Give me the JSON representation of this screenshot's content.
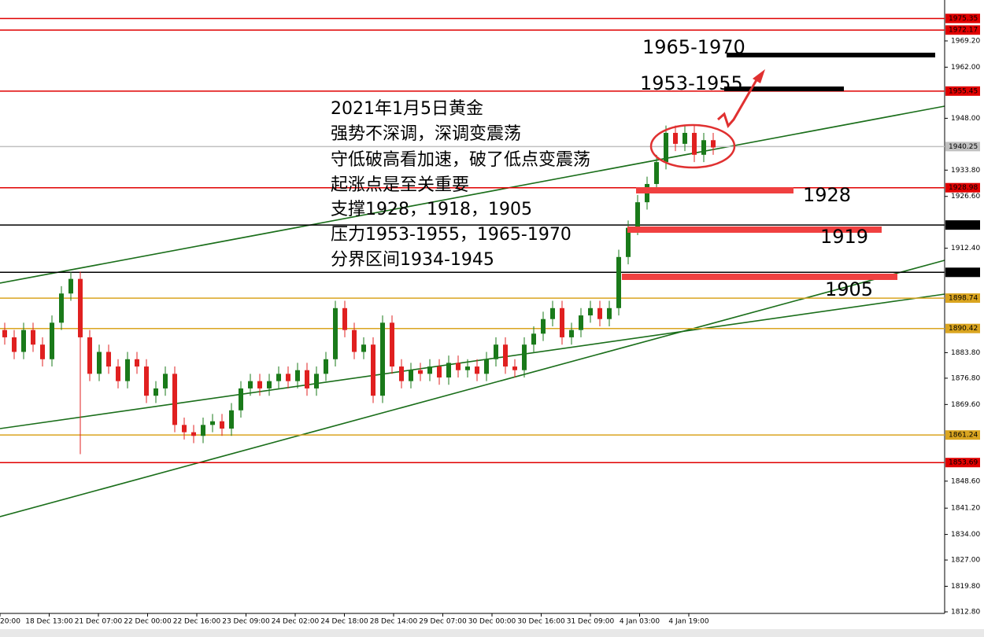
{
  "chart_data": {
    "type": "candlestick",
    "annotations": [
      "2021年1月5日黄金",
      "强势不深调，深调变震荡",
      "守低破高看加速，破了低点变震荡",
      "起涨点是至关重要",
      "支撑1928，1918，1905",
      "压力1953-1955，1965-1970",
      "分界区间1934-1945",
      "1965-1970",
      "1953-1955",
      "1928",
      "1919",
      "1905"
    ],
    "x_labels": [
      "20:00",
      "18 Dec 13:00",
      "21 Dec 07:00",
      "22 Dec 00:00",
      "22 Dec 16:00",
      "23 Dec 09:00",
      "24 Dec 02:00",
      "24 Dec 18:00",
      "28 Dec 14:00",
      "29 Dec 07:00",
      "30 Dec 00:00",
      "30 Dec 16:00",
      "31 Dec 09:00",
      "4 Jan 03:00",
      "4 Jan 19:00"
    ],
    "up_color": "#1a7a1a",
    "down_color": "#e02020",
    "open": [
      1890,
      1888,
      1884,
      1890,
      1886,
      1882,
      1892,
      1900,
      1904,
      1888,
      1878,
      1884,
      1880,
      1876,
      1882,
      1880,
      1872,
      1874,
      1878,
      1864,
      1862,
      1861,
      1864,
      1865,
      1863,
      1868,
      1874,
      1876,
      1874,
      1876,
      1878,
      1876,
      1879,
      1874,
      1878,
      1882,
      1896,
      1890,
      1884,
      1886,
      1872,
      1892,
      1880,
      1876,
      1879,
      1878,
      1880,
      1877,
      1881,
      1879,
      1880,
      1878,
      1882,
      1886,
      1880,
      1879,
      1886,
      1889,
      1893,
      1896,
      1888,
      1890,
      1894,
      1896,
      1893,
      1896,
      1910,
      1918,
      1925,
      1930,
      1936,
      1944,
      1941,
      1944,
      1938,
      1942
    ],
    "high": [
      1892,
      1890,
      1892,
      1892,
      1888,
      1894,
      1902,
      1906,
      1906,
      1890,
      1886,
      1886,
      1882,
      1884,
      1884,
      1882,
      1876,
      1880,
      1880,
      1866,
      1864,
      1866,
      1867,
      1867,
      1870,
      1876,
      1878,
      1878,
      1878,
      1880,
      1880,
      1881,
      1881,
      1880,
      1884,
      1898,
      1898,
      1892,
      1888,
      1888,
      1894,
      1894,
      1882,
      1881,
      1881,
      1882,
      1882,
      1883,
      1883,
      1882,
      1882,
      1884,
      1888,
      1888,
      1882,
      1888,
      1891,
      1895,
      1898,
      1898,
      1892,
      1896,
      1898,
      1898,
      1898,
      1912,
      1920,
      1927,
      1932,
      1938,
      1946,
      1946,
      1946,
      1946,
      1944,
      1944
    ],
    "low": [
      1886,
      1882,
      1882,
      1884,
      1880,
      1880,
      1890,
      1898,
      1856,
      1876,
      1876,
      1878,
      1874,
      1874,
      1878,
      1870,
      1870,
      1872,
      1862,
      1860,
      1859,
      1859,
      1862,
      1861,
      1861,
      1866,
      1872,
      1872,
      1872,
      1874,
      1874,
      1874,
      1872,
      1872,
      1876,
      1880,
      1888,
      1882,
      1882,
      1870,
      1870,
      1878,
      1874,
      1874,
      1876,
      1876,
      1875,
      1875,
      1877,
      1877,
      1876,
      1876,
      1880,
      1878,
      1877,
      1877,
      1884,
      1887,
      1891,
      1886,
      1886,
      1888,
      1892,
      1891,
      1891,
      1894,
      1908,
      1916,
      1923,
      1928,
      1934,
      1939,
      1939,
      1936,
      1936,
      1938
    ],
    "close": [
      1888,
      1884,
      1890,
      1886,
      1882,
      1892,
      1900,
      1904,
      1888,
      1878,
      1884,
      1880,
      1876,
      1882,
      1880,
      1872,
      1874,
      1878,
      1864,
      1862,
      1861,
      1864,
      1865,
      1863,
      1868,
      1874,
      1876,
      1874,
      1876,
      1878,
      1876,
      1879,
      1874,
      1878,
      1882,
      1896,
      1890,
      1884,
      1886,
      1872,
      1892,
      1880,
      1876,
      1879,
      1878,
      1880,
      1877,
      1881,
      1879,
      1880,
      1878,
      1882,
      1886,
      1880,
      1879,
      1886,
      1889,
      1893,
      1896,
      1888,
      1890,
      1894,
      1896,
      1893,
      1896,
      1910,
      1918,
      1925,
      1930,
      1936,
      1944,
      1941,
      1944,
      1938,
      1942,
      1940
    ],
    "levels": [
      {
        "value": 1975.35,
        "color": "#e00000"
      },
      {
        "value": 1972.17,
        "color": "#e00000"
      },
      {
        "value": 1955.45,
        "color": "#e00000"
      },
      {
        "value": 1940.25,
        "color": "#c0c0c0"
      },
      {
        "value": 1928.98,
        "color": "#e00000"
      },
      {
        "value": 1918.76,
        "color": "#000000"
      },
      {
        "value": {
          "value": 1905.8,
          "label": "1905.80"
        },
        "color": "#000000"
      },
      {
        "value": 1898.74,
        "color": "#daa520"
      },
      {
        "value": 1890.42,
        "color": "#daa520"
      },
      {
        "value": 1861.24,
        "color": "#daa520"
      },
      {
        "value": 1853.69,
        "color": "#e00000"
      }
    ],
    "ylim": [
      1812.8,
      1980.4
    ],
    "yticks": [
      {
        "value": 1969.2,
        "label": "1969.20"
      },
      {
        "value": 1962.0,
        "label": "1962.00"
      },
      {
        "value": 1948.0,
        "label": "1948.00"
      },
      {
        "value": 1933.8,
        "label": "1933.80"
      },
      {
        "value": 1926.6,
        "label": "1926.60"
      },
      {
        "value": 1912.4,
        "label": "1912.40"
      },
      {
        "value": 1883.8,
        "label": "1883.80"
      },
      {
        "value": 1876.8,
        "label": "1876.80"
      },
      {
        "value": 1869.6,
        "label": "1869.60"
      },
      {
        "value": 1848.6,
        "label": "1848.60"
      },
      {
        "value": 1841.2,
        "label": "1841.20"
      },
      {
        "value": 1834.0,
        "label": "1834.00"
      },
      {
        "value": 1827.0,
        "label": "1827.00"
      },
      {
        "value": 1819.8,
        "label": "1819.80"
      },
      {
        "value": 1812.8,
        "label": "1812.80"
      }
    ]
  }
}
